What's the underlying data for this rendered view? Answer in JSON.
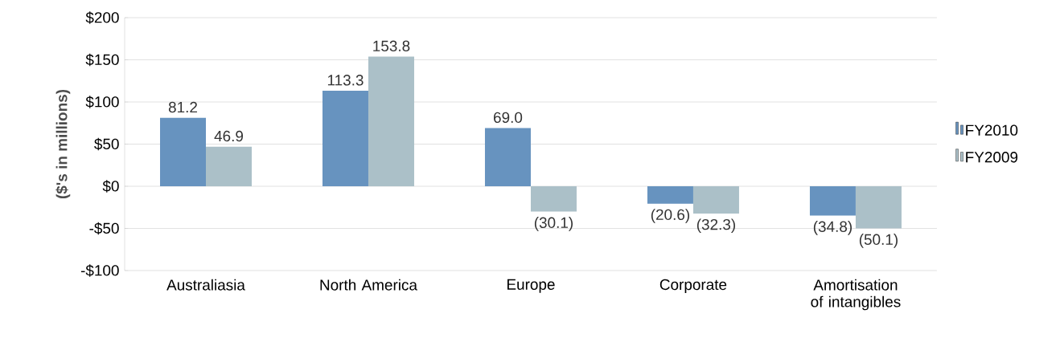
{
  "chart_data": {
    "type": "bar",
    "ylabel": "($'s in millions)",
    "categories": [
      "Australiasia",
      "North America",
      "Europe",
      "Corporate",
      "Amortisation of intangibles"
    ],
    "series": [
      {
        "name": "FY2010",
        "color": "#6793bf",
        "values": [
          81.2,
          113.3,
          69.0,
          -20.6,
          -34.8
        ],
        "value_labels": [
          "81.2",
          "113.3",
          "69.0",
          "(20.6)",
          "(34.8)"
        ]
      },
      {
        "name": "FY2009",
        "color": "#abc0c8",
        "values": [
          46.9,
          153.8,
          -30.1,
          -32.3,
          -50.1
        ],
        "value_labels": [
          "46.9",
          "153.8",
          "(30.1)",
          "(32.3)",
          "(50.1)"
        ]
      }
    ],
    "ylim": [
      -100,
      200
    ],
    "yticks": [
      {
        "value": -100,
        "label": "-$100"
      },
      {
        "value": -50,
        "label": "-$50"
      },
      {
        "value": 0,
        "label": "$0"
      },
      {
        "value": 50,
        "label": "$50"
      },
      {
        "value": 100,
        "label": "$100"
      },
      {
        "value": 150,
        "label": "$150"
      },
      {
        "value": 200,
        "label": "$200"
      }
    ],
    "grid": "y",
    "legend": "right"
  }
}
